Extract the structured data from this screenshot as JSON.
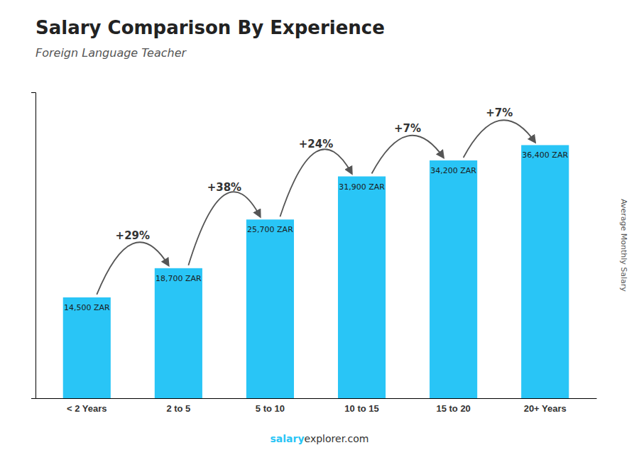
{
  "chart_data": {
    "type": "bar",
    "title": "Salary Comparison By Experience",
    "subtitle": "Foreign Language Teacher",
    "y_label": "Average Monthly Salary",
    "categories": [
      "< 2 Years",
      "2 to 5",
      "5 to 10",
      "10 to 15",
      "15 to 20",
      "20+ Years"
    ],
    "values": [
      14500,
      18700,
      25700,
      31900,
      34200,
      36400
    ],
    "value_labels": [
      "14,500 ZAR",
      "18,700 ZAR",
      "25,700 ZAR",
      "31,900 ZAR",
      "34,200 ZAR",
      "36,400 ZAR"
    ],
    "data_labels": true,
    "annotations": [
      null,
      "+29%",
      "+38%",
      "+24%",
      "+7%",
      "+7%"
    ],
    "color": "#29c5f6",
    "ylim": [
      0,
      44000
    ],
    "yticks": [],
    "tick_labels": "x",
    "footer": [
      "salary",
      "explorer.com"
    ]
  }
}
